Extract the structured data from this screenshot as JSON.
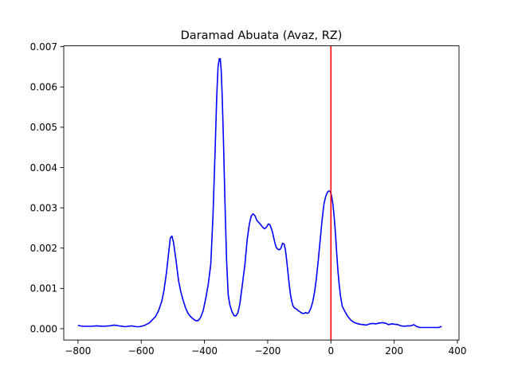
{
  "chart_data": {
    "type": "line",
    "title": "Daramad Abuata (Avaz, RZ)",
    "xlabel": "",
    "ylabel": "",
    "xlim": [
      -845,
      405
    ],
    "ylim": [
      -0.00028,
      0.00702
    ],
    "x_ticks": [
      -800,
      -600,
      -400,
      -200,
      0,
      200,
      400
    ],
    "x_tick_labels": [
      "−800",
      "−600",
      "−400",
      "−200",
      "0",
      "200",
      "400"
    ],
    "y_ticks": [
      0.0,
      0.001,
      0.002,
      0.003,
      0.004,
      0.005,
      0.006,
      0.007
    ],
    "y_tick_labels": [
      "0.000",
      "0.001",
      "0.002",
      "0.003",
      "0.004",
      "0.005",
      "0.006",
      "0.007"
    ],
    "grid": false,
    "series": [
      {
        "color": "#0000ff",
        "x": [
          -800,
          -785,
          -760,
          -740,
          -720,
          -700,
          -685,
          -670,
          -650,
          -630,
          -615,
          -605,
          -590,
          -575,
          -565,
          -555,
          -545,
          -535,
          -528,
          -520,
          -513,
          -508,
          -503,
          -498,
          -490,
          -482,
          -475,
          -468,
          -460,
          -452,
          -445,
          -437,
          -428,
          -420,
          -412,
          -404,
          -396,
          -388,
          -380,
          -373,
          -366,
          -361,
          -357,
          -353,
          -350,
          -347,
          -344,
          -340,
          -335,
          -330,
          -325,
          -320,
          -313,
          -306,
          -300,
          -294,
          -288,
          -280,
          -272,
          -265,
          -258,
          -252,
          -246,
          -240,
          -235,
          -230,
          -224,
          -216,
          -210,
          -204,
          -198,
          -193,
          -189,
          -185,
          -181,
          -177,
          -173,
          -168,
          -163,
          -158,
          -153,
          -148,
          -144,
          -140,
          -136,
          -132,
          -128,
          -124,
          -120,
          -116,
          -112,
          -108,
          -104,
          -100,
          -95,
          -90,
          -85,
          -80,
          -75,
          -70,
          -64,
          -58,
          -52,
          -46,
          -40,
          -34,
          -28,
          -22,
          -16,
          -10,
          -6,
          -2,
          2,
          6,
          10,
          14,
          18,
          22,
          26,
          30,
          36,
          44,
          52,
          62,
          72,
          82,
          92,
          102,
          112,
          122,
          132,
          142,
          152,
          162,
          172,
          182,
          192,
          202,
          212,
          222,
          232,
          242,
          252,
          262,
          272,
          282,
          292,
          302,
          312,
          322,
          332,
          342,
          350
        ],
        "y": [
          8e-05,
          6e-05,
          6e-05,
          7e-05,
          6e-05,
          7e-05,
          9e-05,
          7e-05,
          5e-05,
          7e-05,
          5e-05,
          5e-05,
          8e-05,
          0.00014,
          0.00022,
          0.0003,
          0.00045,
          0.00068,
          0.00095,
          0.0014,
          0.0019,
          0.00225,
          0.0023,
          0.00215,
          0.0017,
          0.0012,
          0.00092,
          0.00072,
          0.00052,
          0.00038,
          0.00031,
          0.00025,
          0.0002,
          0.0002,
          0.00028,
          0.00045,
          0.00075,
          0.0011,
          0.0016,
          0.0028,
          0.0045,
          0.0058,
          0.0065,
          0.0067,
          0.0067,
          0.0064,
          0.0058,
          0.0047,
          0.0031,
          0.0017,
          0.00085,
          0.0006,
          0.00042,
          0.00032,
          0.00032,
          0.0004,
          0.00062,
          0.0011,
          0.0016,
          0.0022,
          0.0026,
          0.0028,
          0.00285,
          0.0028,
          0.0027,
          0.00265,
          0.0026,
          0.00252,
          0.00248,
          0.00252,
          0.0026,
          0.00258,
          0.0025,
          0.0024,
          0.00226,
          0.00212,
          0.00202,
          0.00197,
          0.00196,
          0.002,
          0.00212,
          0.0021,
          0.00196,
          0.0017,
          0.0014,
          0.0011,
          0.00085,
          0.00068,
          0.00057,
          0.00052,
          0.0005,
          0.00048,
          0.00045,
          0.00043,
          0.0004,
          0.00038,
          0.00038,
          0.0004,
          0.00038,
          0.0004,
          0.0005,
          0.00065,
          0.0009,
          0.00125,
          0.0017,
          0.0022,
          0.0027,
          0.0031,
          0.0033,
          0.0034,
          0.00342,
          0.0034,
          0.0033,
          0.0031,
          0.0028,
          0.0024,
          0.0019,
          0.00145,
          0.0011,
          0.00082,
          0.00055,
          0.00043,
          0.00032,
          0.00022,
          0.00016,
          0.00013,
          0.00011,
          0.0001,
          9e-05,
          0.00012,
          0.00013,
          0.00012,
          0.00014,
          0.00015,
          0.00014,
          0.0001,
          0.00012,
          0.00011,
          0.0001,
          7e-05,
          6e-05,
          7e-05,
          7e-05,
          0.0001,
          5e-05,
          3e-05,
          3e-05,
          3e-05,
          3e-05,
          3e-05,
          3e-05,
          3e-05,
          6e-05
        ]
      }
    ],
    "vline": {
      "x": 0,
      "color": "#ff0000"
    }
  }
}
